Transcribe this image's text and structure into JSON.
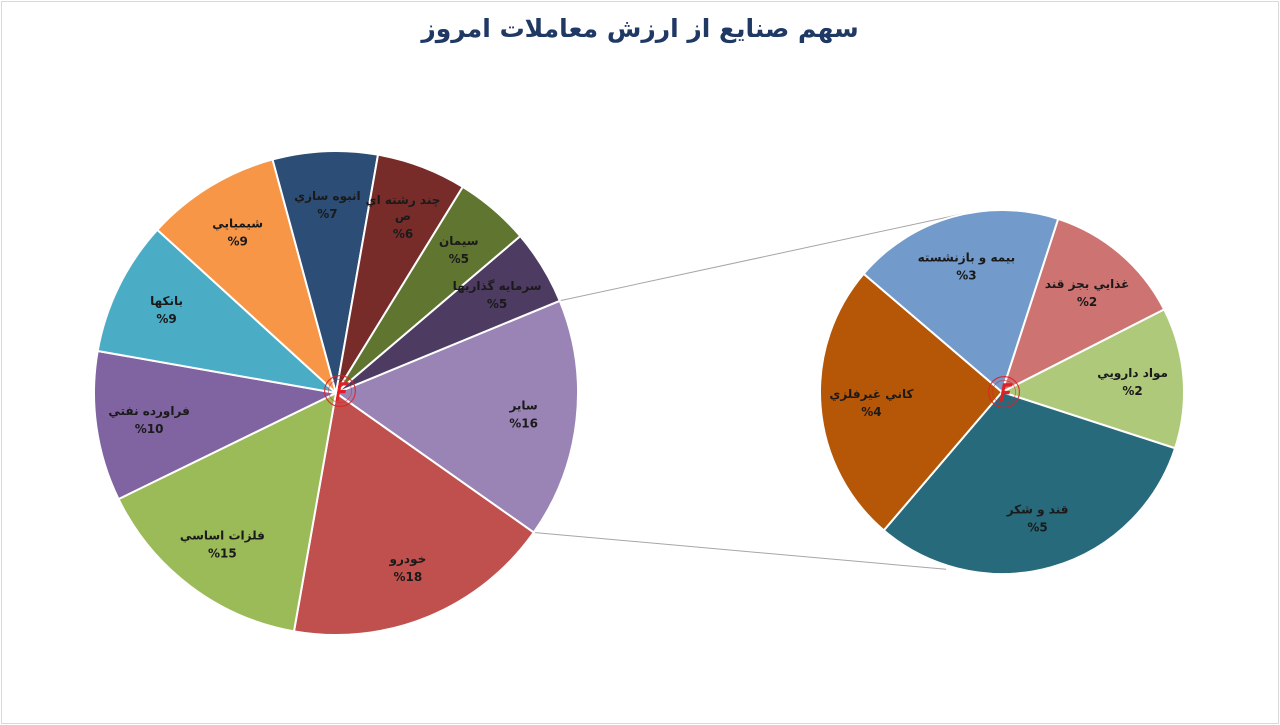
{
  "title": "سهم صنایع از ارزش معاملات امروز",
  "chart_data": {
    "type": "pie",
    "title": "سهم صنایع از ارزش معاملات امروز",
    "subtype": "pie-of-pie",
    "main_pie": {
      "slices": [
        {
          "name": "سایر",
          "value": 16,
          "label": "%16",
          "color": "#9a84b5"
        },
        {
          "name": "خودرو",
          "value": 18,
          "label": "%18",
          "color": "#c0504d"
        },
        {
          "name": "فلزات اساسي",
          "value": 15,
          "label": "%15",
          "color": "#9bbb59"
        },
        {
          "name": "فراورده نفتي",
          "value": 10,
          "label": "%10",
          "color": "#8064a2"
        },
        {
          "name": "بانکها",
          "value": 9,
          "label": "%9",
          "color": "#4bacc6"
        },
        {
          "name": "شيميايي",
          "value": 9,
          "label": "%9",
          "color": "#f79646"
        },
        {
          "name": "انبوه سازي",
          "value": 7,
          "label": "%7",
          "color": "#2c4d75"
        },
        {
          "name": "چند رشته اي ص",
          "value": 6,
          "label": "%6",
          "color": "#772c2a"
        },
        {
          "name": "سيمان",
          "value": 5,
          "label": "%5",
          "color": "#5f7530"
        },
        {
          "name": "سرمايه گذاريها",
          "value": 5,
          "label": "%5",
          "color": "#4d3b62"
        }
      ]
    },
    "secondary_pie": {
      "slices": [
        {
          "name": "مواد دارويي",
          "value": 2,
          "label": "%2",
          "color": "#afc97a"
        },
        {
          "name": "قند و شکر",
          "value": 5,
          "label": "%5",
          "color": "#276a7c"
        },
        {
          "name": "کاني غيرفلزي",
          "value": 4,
          "label": "%4",
          "color": "#b65708"
        },
        {
          "name": "بيمه و بازنشسته",
          "value": 3,
          "label": "%3",
          "color": "#729aca"
        },
        {
          "name": "غذايي بجز قند",
          "value": 2,
          "label": "%2",
          "color": "#cd7371"
        }
      ]
    },
    "legend": "none"
  },
  "colors": {
    "title": "#1f3864",
    "connector": "#a6a6a6",
    "logo": "#e31e24"
  },
  "icons": {
    "center_logo": "red-f-logo-icon"
  }
}
